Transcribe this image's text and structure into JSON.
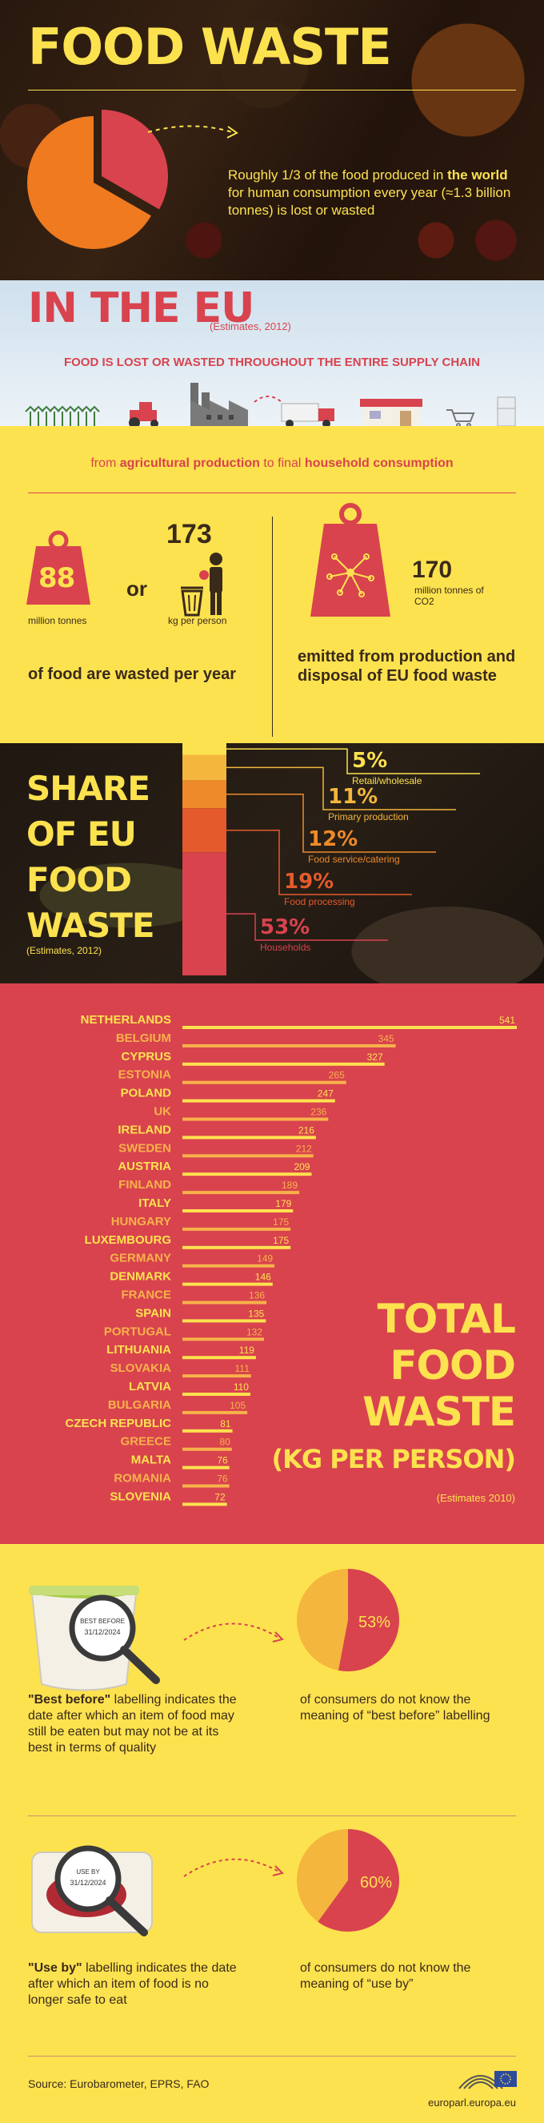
{
  "hero": {
    "title": "FOOD WASTE",
    "text_pre": "Roughly 1/3 of the food produced in ",
    "text_strong": "the world",
    "text_post": " for human consumption every year (≈1.3 billion tonnes) is lost or wasted",
    "pie_fraction": 0.333
  },
  "eu": {
    "title": "IN THE EU",
    "estimates": "(Estimates, 2012)",
    "subtitle": "FOOD IS LOST OR WASTED THROUGHOUT THE ENTIRE SUPPLY CHAIN",
    "chain_pre": "from ",
    "chain_a": "agricultural production",
    "chain_mid": " to final ",
    "chain_b": "household consumption"
  },
  "stats": {
    "weight_value": "88",
    "weight_unit": "million tonnes",
    "or": "or",
    "per_person_value": "173",
    "per_person_unit": "kg per person",
    "food_wasted": "of food are wasted per year",
    "co2_value": "170",
    "co2_unit": "million tonnes of CO2",
    "co2_desc": "emitted from production and disposal of EU food waste"
  },
  "share": {
    "title_lines": [
      "SHARE",
      "OF EU",
      "FOOD",
      "WASTE"
    ],
    "estimates": "(Estimates, 2012)",
    "segments": [
      {
        "pct": "5%",
        "label": "Retail/wholesale",
        "value": 5,
        "color": "#fde24f"
      },
      {
        "pct": "11%",
        "label": "Primary production",
        "value": 11,
        "color": "#f4b63c"
      },
      {
        "pct": "12%",
        "label": "Food service/catering",
        "value": 12,
        "color": "#ef8a2a"
      },
      {
        "pct": "19%",
        "label": "Food processing",
        "value": 19,
        "color": "#e55a2c"
      },
      {
        "pct": "53%",
        "label": "Households",
        "value": 53,
        "color": "#d8434e"
      }
    ]
  },
  "chart_data": {
    "type": "bar",
    "title_lines": [
      "TOTAL",
      "FOOD",
      "WASTE"
    ],
    "subtitle": "(KG PER PERSON)",
    "note": "(Estimates 2010)",
    "categories": [
      "NETHERLANDS",
      "BELGIUM",
      "CYPRUS",
      "ESTONIA",
      "POLAND",
      "UK",
      "IRELAND",
      "SWEDEN",
      "AUSTRIA",
      "FINLAND",
      "ITALY",
      "HUNGARY",
      "LUXEMBOURG",
      "GERMANY",
      "DENMARK",
      "FRANCE",
      "SPAIN",
      "PORTUGAL",
      "LITHUANIA",
      "SLOVAKIA",
      "LATVIA",
      "BULGARIA",
      "CZECH REPUBLIC",
      "GREECE",
      "MALTA",
      "ROMANIA",
      "SLOVENIA"
    ],
    "values": [
      541,
      345,
      327,
      265,
      247,
      236,
      216,
      212,
      209,
      189,
      179,
      175,
      175,
      149,
      146,
      136,
      135,
      132,
      119,
      111,
      110,
      105,
      81,
      80,
      76,
      76,
      72
    ],
    "bar_color": "#fde24f",
    "xlim": [
      0,
      541
    ]
  },
  "labelling": {
    "best_before_stamp": "BEST BEFORE",
    "best_before_date": "31/12/2024",
    "best_before_strong": "\"Best before\"",
    "best_before_text": " labelling indicates the date after which an item of food may still be eaten but may not be at its best in terms of quality",
    "best_before_pct": "53%",
    "best_before_value": 0.53,
    "best_before_pie_text": "of consumers do not know the meaning of “best before” labelling",
    "use_by_stamp": "USE BY",
    "use_by_date": "31/12/2024",
    "use_by_strong": "\"Use by\"",
    "use_by_text": " labelling indicates the date after which an item of food is no longer safe to eat",
    "use_by_pct": "60%",
    "use_by_value": 0.6,
    "use_by_pie_text": "of consumers do not know the meaning of “use by”"
  },
  "footer": {
    "source": "Source: Eurobarometer, EPRS, FAO",
    "url": "europarl.europa.eu"
  },
  "colors": {
    "yellow": "#fde24f",
    "red": "#d8434e",
    "orange": "#ef7a1f",
    "brown": "#3a2a1a"
  }
}
